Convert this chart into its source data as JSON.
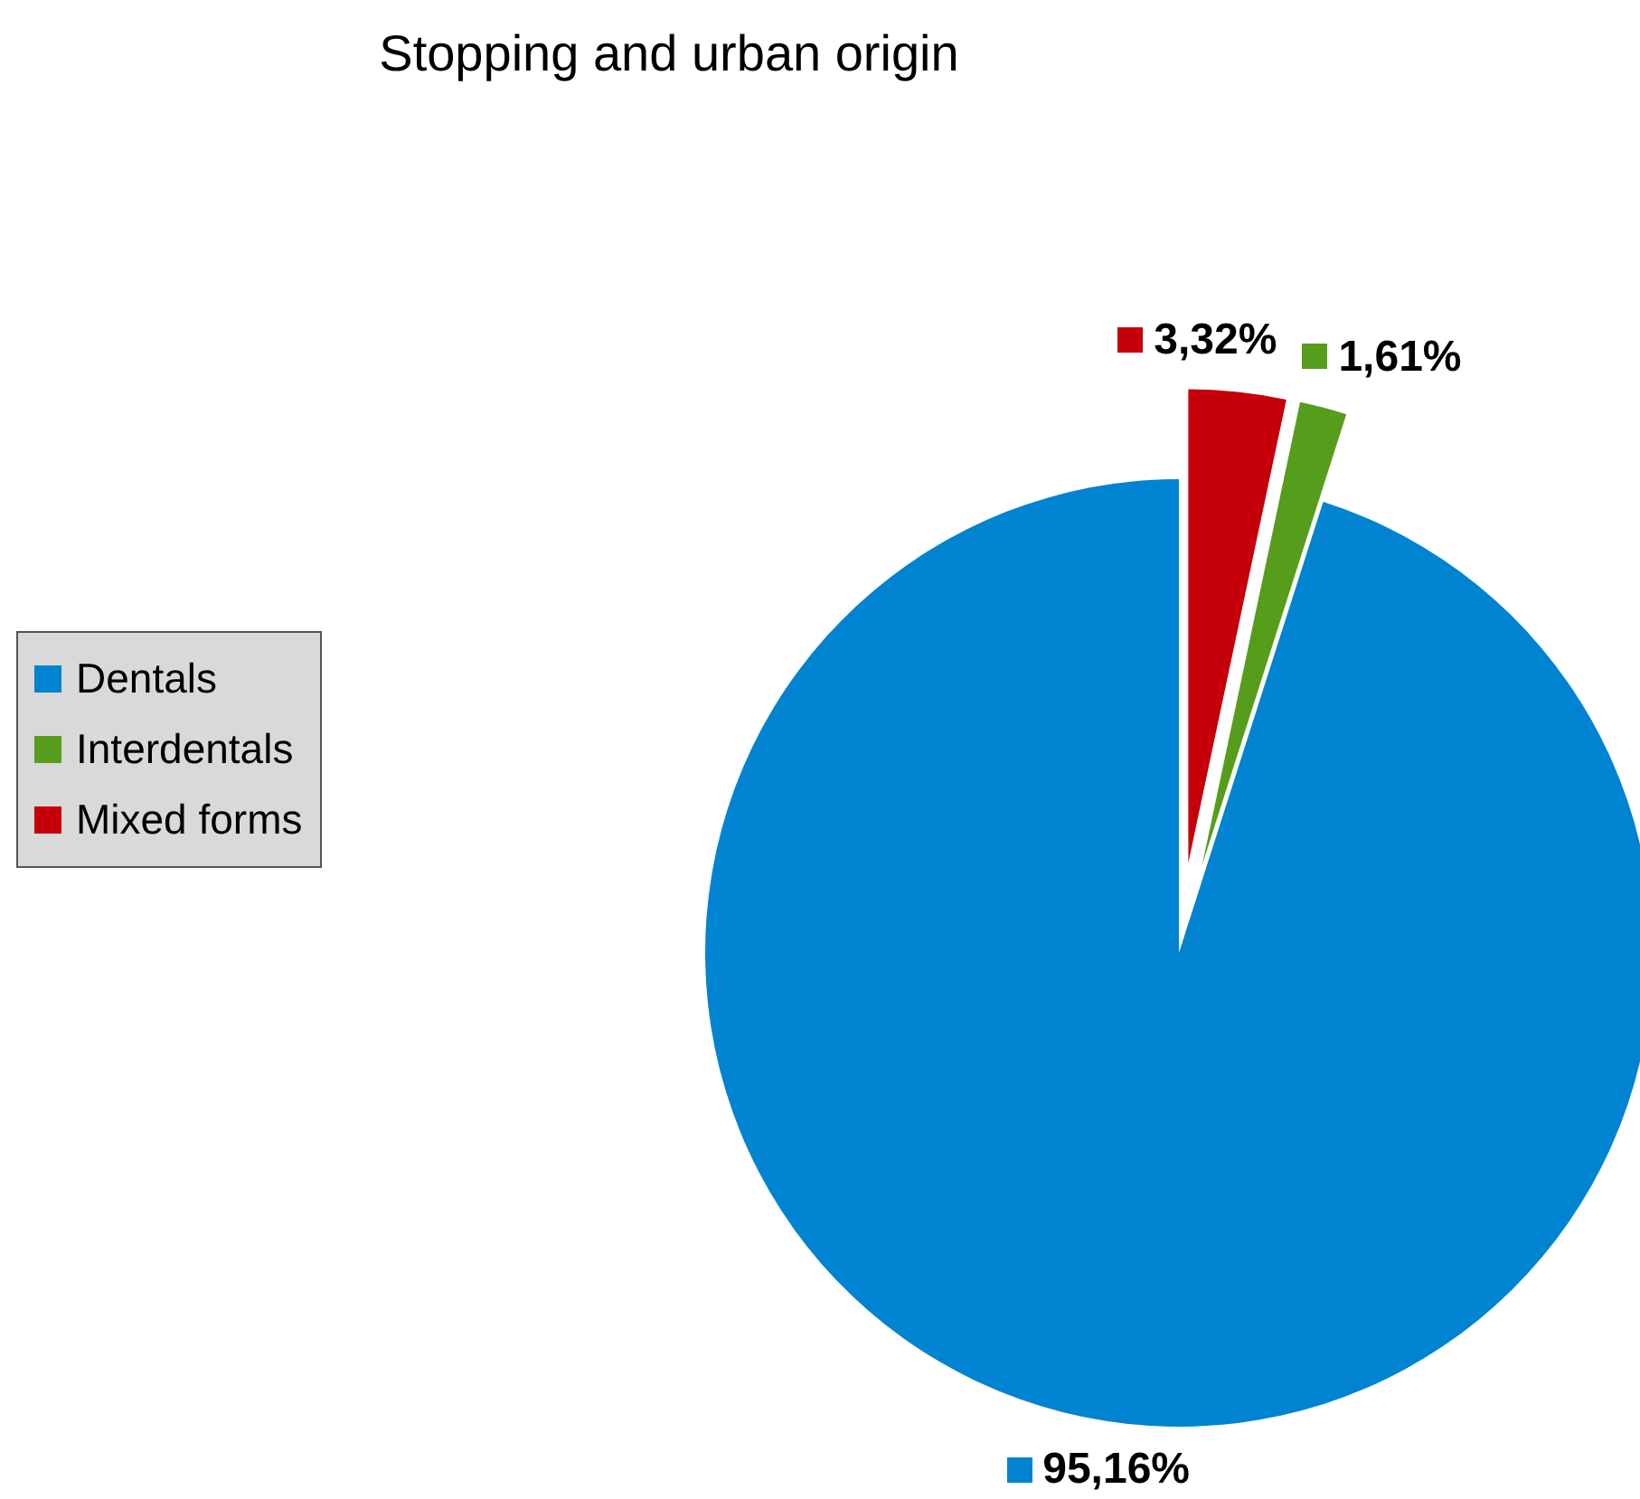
{
  "chart_data": {
    "type": "pie",
    "title": "Stopping and urban origin",
    "categories": [
      "Dentals",
      "Interdentals",
      "Mixed forms"
    ],
    "values": [
      95.16,
      1.61,
      3.32
    ],
    "colors": [
      "#0084d1",
      "#579d1c",
      "#c5000b"
    ],
    "value_labels": [
      "95,16%",
      "1,61%",
      "3,32%"
    ],
    "legend": "left"
  }
}
